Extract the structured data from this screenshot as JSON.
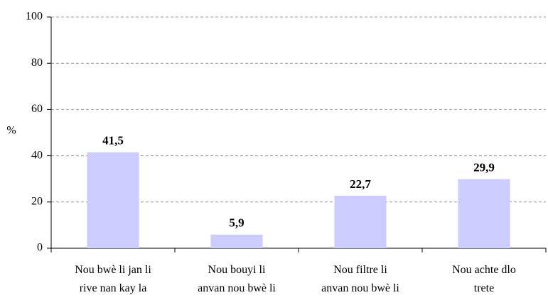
{
  "chart_data": {
    "type": "bar",
    "y_label": "%",
    "categories": [
      "Nou bwè li jan li\nrive nan kay la",
      "Nou bouyi li\nanvan nou bwè li",
      "Nou filtre li\nanvan nou bwè li",
      "Nou achte dlo\ntrete"
    ],
    "values": [
      41.5,
      5.9,
      22.7,
      29.9
    ],
    "value_labels": [
      "41,5",
      "5,9",
      "22,7",
      "29,9"
    ],
    "color": "#ccccff",
    "ylim": [
      0,
      100
    ],
    "yticks": [
      0,
      20,
      40,
      60,
      80,
      100
    ],
    "grid": true
  }
}
